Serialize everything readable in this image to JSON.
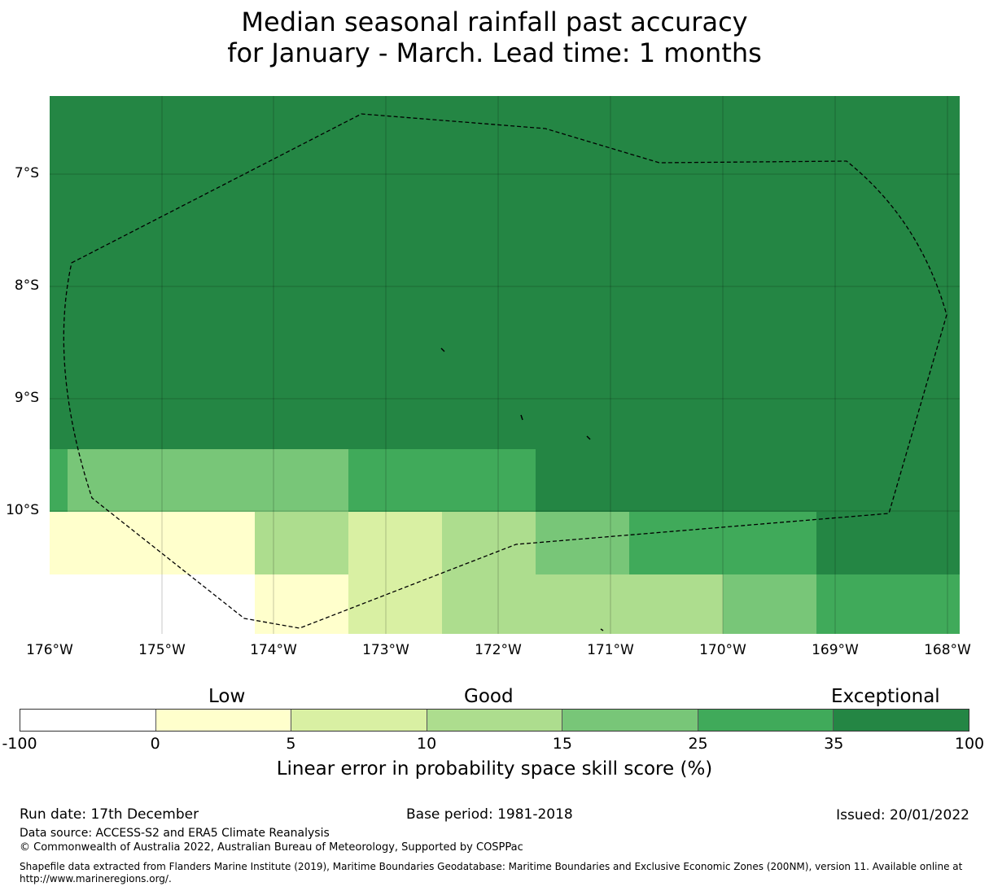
{
  "title": {
    "line1": "Median seasonal rainfall past accuracy",
    "line2": "for January - March. Lead time: 1 months"
  },
  "map": {
    "lon_labels": [
      "176°W",
      "175°W",
      "174°W",
      "173°W",
      "172°W",
      "171°W",
      "170°W",
      "169°W",
      "168°W"
    ],
    "lat_labels": [
      "7°S",
      "8°S",
      "9°S",
      "10°S"
    ],
    "colors": {
      "very_high": "#248644",
      "high": "#40aa5a",
      "mid_high": "#78c678",
      "mid": "#addd8e",
      "low_mid": "#d9f0a3",
      "low": "#ffffcc",
      "none": "#ffffff"
    }
  },
  "colorbar": {
    "categories": [
      "Low",
      "Good",
      "Exceptional"
    ],
    "ticks": [
      "-100",
      "0",
      "5",
      "10",
      "15",
      "25",
      "35",
      "100"
    ],
    "colors": [
      "#ffffff",
      "#ffffcc",
      "#d9f0a3",
      "#addd8e",
      "#78c678",
      "#40aa5a",
      "#248644"
    ],
    "axis_label": "Linear error in probability space skill score (%)"
  },
  "footer": {
    "run_date": "Run date: 17th December",
    "base_period": "Base period: 1981-2018",
    "issued": "Issued: 20/01/2022",
    "data_source": "Data source: ACCESS-S2 and ERA5 Climate Reanalysis",
    "copyright": "© Commonwealth of Australia 2022, Australian Bureau of Meteorology, Supported by COSPPac",
    "shapefile": "Shapefile data extracted from Flanders Marine Institute (2019), Maritime Boundaries Geodatabase: Maritime Boundaries and Exclusive Economic Zones (200NM), version 11. Available online at http://www.marineregions.org/."
  }
}
